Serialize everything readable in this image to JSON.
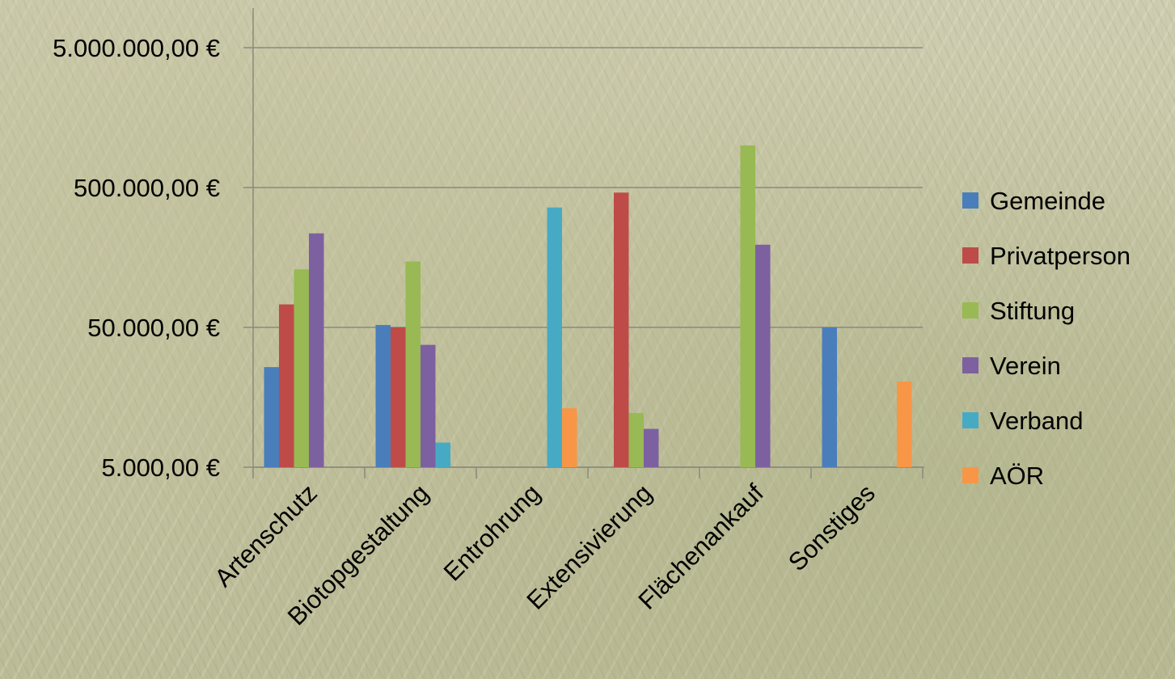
{
  "chart_data": {
    "type": "bar",
    "y_scale": "log",
    "ylim": [
      5000,
      5000000
    ],
    "yticks": [
      5000,
      50000,
      500000,
      5000000
    ],
    "ytick_labels": [
      "5.000,00 €",
      "50.000,00 €",
      "500.000,00 €",
      "5.000.000,00 €"
    ],
    "categories": [
      "Artenschutz",
      "Biotopgestaltung",
      "Entrohrung",
      "Extensivierung",
      "Flächenankauf",
      "Sonstiges"
    ],
    "series": [
      {
        "name": "Gemeinde",
        "color": "#4a7ebb",
        "values": [
          26000,
          52000,
          null,
          null,
          null,
          50000
        ]
      },
      {
        "name": "Privatperson",
        "color": "#be4b48",
        "values": [
          73000,
          50000,
          null,
          460000,
          null,
          null
        ]
      },
      {
        "name": "Stiftung",
        "color": "#98b954",
        "values": [
          130000,
          148000,
          null,
          12200,
          1000000,
          null
        ]
      },
      {
        "name": "Verein",
        "color": "#7d60a0",
        "values": [
          235000,
          37500,
          null,
          9400,
          195000,
          null
        ]
      },
      {
        "name": "Verband",
        "color": "#46aac5",
        "values": [
          null,
          7500,
          360000,
          null,
          null,
          null
        ]
      },
      {
        "name": "AÖR",
        "color": "#f79646",
        "values": [
          null,
          null,
          13200,
          null,
          null,
          20500
        ]
      }
    ],
    "grid": true,
    "legend": "right"
  }
}
